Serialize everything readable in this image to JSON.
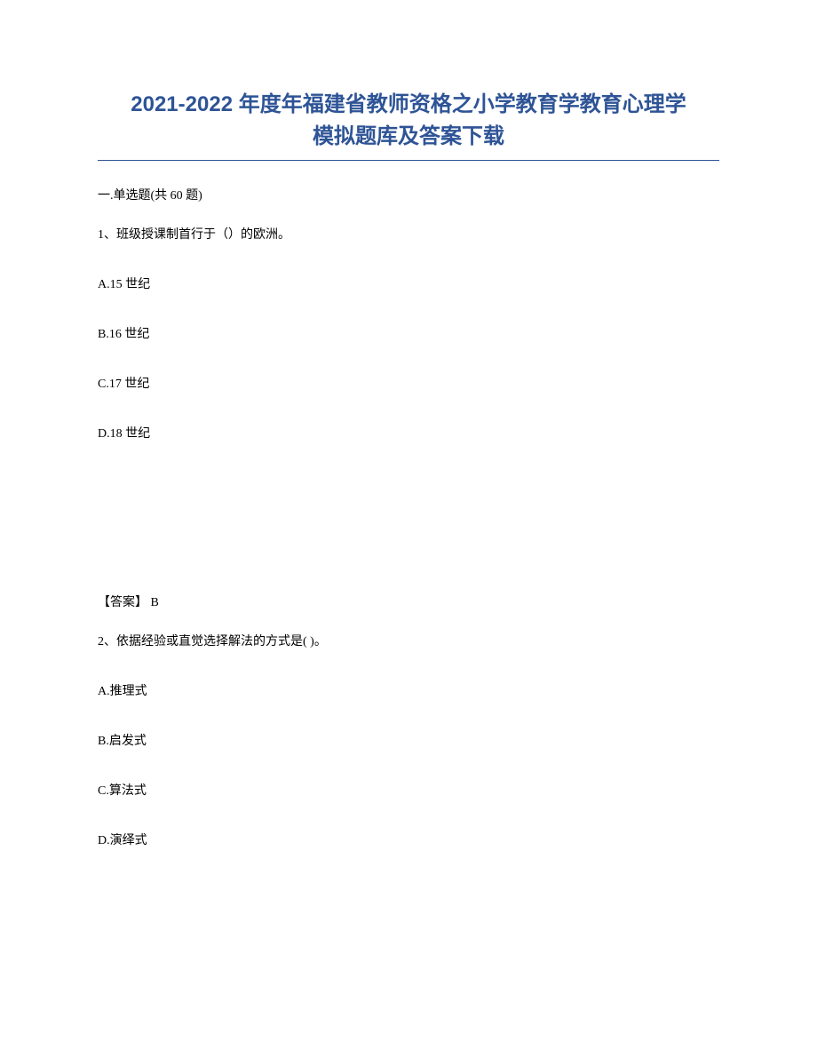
{
  "title_line1": "2021-2022 年度年福建省教师资格之小学教育学教育心理学",
  "title_line2": "模拟题库及答案下载",
  "section_header": "一.单选题(共 60 题)",
  "questions": [
    {
      "number": "1",
      "text": "、班级授课制首行于（）的欧洲。",
      "options": [
        "A.15 世纪",
        "B.16 世纪",
        "C.17 世纪",
        "D.18 世纪"
      ],
      "answer_label": "【答案】",
      "answer_value": " B"
    },
    {
      "number": "2",
      "text": "、依据经验或直觉选择解法的方式是( )。",
      "options": [
        "A.推理式",
        "B.启发式",
        "C.算法式",
        "D.演绎式"
      ]
    }
  ],
  "style": {
    "title_color": "#2e5496",
    "title_fontsize": 24,
    "body_fontsize": 14,
    "text_color": "#000000",
    "background_color": "#ffffff",
    "underline_color": "#2e5496"
  }
}
